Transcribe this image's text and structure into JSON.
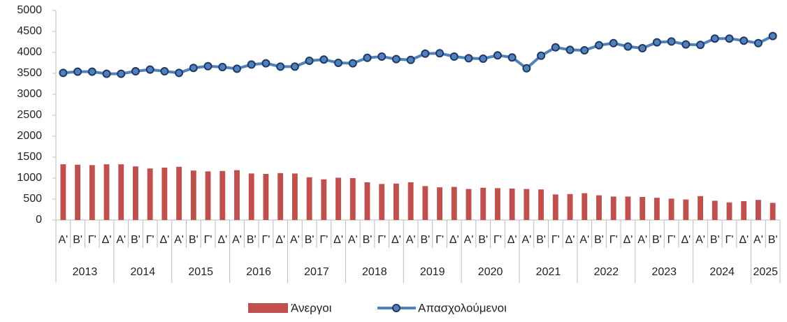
{
  "chart_data": {
    "type": "bar-line",
    "categories": [
      "Α'",
      "Β'",
      "Γ'",
      "Δ'",
      "Α'",
      "Β'",
      "Γ'",
      "Δ'",
      "Α'",
      "Β'",
      "Γ'",
      "Δ'",
      "Α'",
      "Β'",
      "Γ'",
      "Δ'",
      "Α'",
      "Β'",
      "Γ'",
      "Δ'",
      "Α'",
      "Β'",
      "Γ'",
      "Δ'",
      "Α'",
      "Β'",
      "Γ'",
      "Δ'",
      "Α'",
      "Β'",
      "Γ'",
      "Δ'",
      "Α'",
      "Β'",
      "Γ'",
      "Δ'",
      "Α'",
      "Β'",
      "Γ'",
      "Δ'",
      "Α'",
      "Β'",
      "Γ'",
      "Δ'",
      "Α'",
      "Β'",
      "Γ'",
      "Δ'",
      "Α'",
      "Β'"
    ],
    "category_groups": [
      "2013",
      null,
      null,
      null,
      "2014",
      null,
      null,
      null,
      "2015",
      null,
      null,
      null,
      "2016",
      null,
      null,
      null,
      "2017",
      null,
      null,
      null,
      "2018",
      null,
      null,
      null,
      "2019",
      null,
      null,
      null,
      "2020",
      null,
      null,
      null,
      "2021",
      null,
      null,
      null,
      "2022",
      null,
      null,
      null,
      "2023",
      null,
      null,
      null,
      "2024",
      null,
      null,
      null,
      "2025",
      null
    ],
    "series": [
      {
        "name": "Άνεργοι",
        "type": "bar",
        "color": "#c0504d",
        "values": [
          1330,
          1320,
          1310,
          1330,
          1330,
          1280,
          1230,
          1250,
          1270,
          1180,
          1160,
          1170,
          1190,
          1110,
          1100,
          1120,
          1110,
          1020,
          970,
          1010,
          1000,
          900,
          860,
          870,
          900,
          810,
          780,
          790,
          740,
          770,
          760,
          750,
          740,
          730,
          610,
          620,
          640,
          590,
          560,
          560,
          550,
          530,
          510,
          490,
          570,
          460,
          420,
          450,
          480,
          410
        ]
      },
      {
        "name": "Απασχολούμενοι",
        "type": "line",
        "color": "#4f81bd",
        "marker_color": "#1f3864",
        "values": [
          3510,
          3540,
          3540,
          3490,
          3490,
          3550,
          3590,
          3550,
          3510,
          3630,
          3670,
          3650,
          3610,
          3710,
          3740,
          3660,
          3660,
          3800,
          3830,
          3750,
          3740,
          3870,
          3900,
          3840,
          3820,
          3970,
          3980,
          3900,
          3860,
          3850,
          3930,
          3880,
          3620,
          3920,
          4120,
          4060,
          4050,
          4170,
          4220,
          4140,
          4100,
          4240,
          4260,
          4190,
          4180,
          4330,
          4330,
          4280,
          4220,
          4390
        ]
      }
    ],
    "ylim": [
      0,
      5000
    ],
    "yticks": [
      0,
      500,
      1000,
      1500,
      2000,
      2500,
      3000,
      3500,
      4000,
      4500,
      5000
    ],
    "grid": false,
    "legend": "bottom"
  }
}
